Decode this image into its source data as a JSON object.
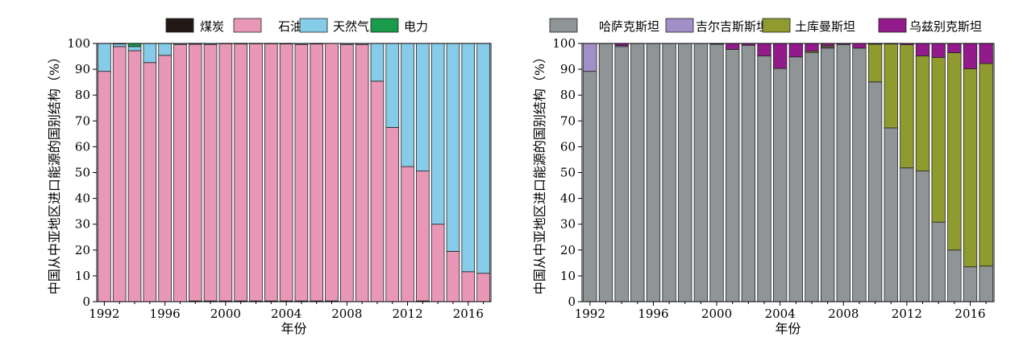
{
  "chart_data": [
    {
      "type": "bar",
      "stacked": true,
      "categories": [
        1992,
        1993,
        1994,
        1995,
        1996,
        1997,
        1998,
        1999,
        2000,
        2001,
        2002,
        2003,
        2004,
        2005,
        2006,
        2007,
        2008,
        2009,
        2010,
        2011,
        2012,
        2013,
        2014,
        2015,
        2016,
        2017
      ],
      "series": [
        {
          "name": "煤炭",
          "color": "#231815",
          "values": [
            0,
            0,
            0,
            0,
            0,
            0,
            0.3,
            0.3,
            0.3,
            0.3,
            0.3,
            0.3,
            0.3,
            0.3,
            0.3,
            0.3,
            0,
            0,
            0,
            0,
            0,
            0.3,
            0,
            0,
            0,
            0
          ]
        },
        {
          "name": "石油",
          "color": "#e897b6",
          "values": [
            89.2,
            98.8,
            97.2,
            92.6,
            95.4,
            99.6,
            99.4,
            99.3,
            99.6,
            99.5,
            99.6,
            99.6,
            99.5,
            99.3,
            99.5,
            99.7,
            99.6,
            99.6,
            85.4,
            67.5,
            52.3,
            50.3,
            30.0,
            19.5,
            11.6,
            11.0
          ]
        },
        {
          "name": "天然气",
          "color": "#86cbe8",
          "values": [
            10.8,
            1.0,
            1.6,
            7.4,
            4.6,
            0.4,
            0.3,
            0.4,
            0.1,
            0.2,
            0.1,
            0.1,
            0.2,
            0.4,
            0.2,
            0,
            0.4,
            0.4,
            14.6,
            32.5,
            47.7,
            49.4,
            70.0,
            80.5,
            88.4,
            89.0
          ]
        },
        {
          "name": "电力",
          "color": "#1a9a4b",
          "values": [
            0,
            0.2,
            1.2,
            0,
            0,
            0,
            0,
            0,
            0,
            0,
            0,
            0,
            0,
            0,
            0,
            0,
            0,
            0,
            0,
            0,
            0,
            0,
            0,
            0,
            0,
            0
          ]
        }
      ],
      "xlabel": "年份",
      "ylabel": "中国从中亚地区进口能源的国别结构（%）",
      "ylim": [
        0,
        100
      ],
      "yticks": [
        0,
        10,
        20,
        30,
        40,
        50,
        60,
        70,
        80,
        90,
        100
      ],
      "xtick_labels": [
        "1992",
        "1996",
        "2000",
        "2004",
        "2008",
        "2012",
        "2016"
      ],
      "legend_position": "top"
    },
    {
      "type": "bar",
      "stacked": true,
      "categories": [
        1992,
        1993,
        1994,
        1995,
        1996,
        1997,
        1998,
        1999,
        2000,
        2001,
        2002,
        2003,
        2004,
        2005,
        2006,
        2007,
        2008,
        2009,
        2010,
        2011,
        2012,
        2013,
        2014,
        2015,
        2016,
        2017
      ],
      "series": [
        {
          "name": "哈萨克斯坦",
          "color": "#8f9497",
          "values": [
            89.2,
            100,
            98.8,
            100,
            100,
            100,
            100,
            100,
            99.7,
            97.7,
            99.3,
            95.2,
            90.3,
            94.8,
            96.5,
            98.2,
            99.6,
            98.2,
            85.1,
            67.3,
            51.8,
            50.6,
            30.8,
            20.0,
            13.5,
            13.8
          ]
        },
        {
          "name": "吉尔吉斯斯坦",
          "color": "#a18fc7",
          "values": [
            10.8,
            0,
            0.4,
            0,
            0,
            0,
            0,
            0,
            0,
            0,
            0,
            0,
            0,
            0,
            0,
            0.4,
            0,
            0,
            0,
            0,
            0,
            0,
            0,
            0,
            0,
            0
          ]
        },
        {
          "name": "土库曼斯坦",
          "color": "#8f9a2f",
          "values": [
            0,
            0,
            0,
            0,
            0,
            0,
            0,
            0,
            0,
            0,
            0,
            0,
            0,
            0,
            0.5,
            0.5,
            0,
            0,
            14.6,
            32.5,
            47.7,
            44.6,
            63.8,
            76.4,
            76.7,
            78.4
          ]
        },
        {
          "name": "乌兹别克斯坦",
          "color": "#921a8a",
          "values": [
            0,
            0,
            0.8,
            0,
            0,
            0,
            0,
            0,
            0.3,
            2.3,
            0.7,
            4.8,
            9.7,
            5.2,
            3.0,
            0.9,
            0.4,
            1.8,
            0.3,
            0.2,
            0.5,
            4.8,
            5.4,
            3.6,
            9.8,
            7.8
          ]
        }
      ],
      "xlabel": "年份",
      "ylabel": "中国从中亚地区进口能源的国别结构（%）",
      "ylim": [
        0,
        100
      ],
      "yticks": [
        0,
        10,
        20,
        30,
        40,
        50,
        60,
        70,
        80,
        90,
        100
      ],
      "xtick_labels": [
        "1992",
        "1996",
        "2000",
        "2004",
        "2008",
        "2012",
        "2016"
      ],
      "legend_position": "top"
    }
  ]
}
